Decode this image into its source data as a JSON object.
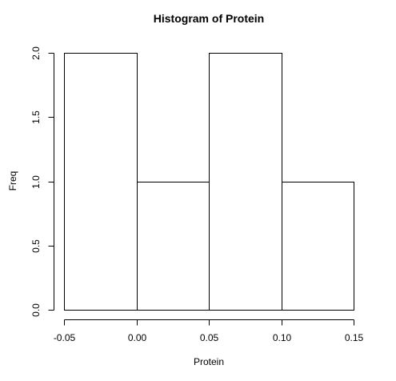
{
  "chart_data": {
    "type": "bar",
    "title": "Histogram of Protein",
    "xlabel": "Protein",
    "ylabel": "Freq",
    "bins": [
      {
        "start": -0.05,
        "end": 0.0,
        "count": 2
      },
      {
        "start": 0.0,
        "end": 0.05,
        "count": 1
      },
      {
        "start": 0.05,
        "end": 0.1,
        "count": 2
      },
      {
        "start": 0.1,
        "end": 0.15,
        "count": 1
      }
    ],
    "xlim": [
      -0.05,
      0.15
    ],
    "ylim": [
      0,
      2
    ],
    "x_ticks": [
      {
        "value": -0.05,
        "label": "-0.05"
      },
      {
        "value": 0.0,
        "label": "0.00"
      },
      {
        "value": 0.05,
        "label": "0.05"
      },
      {
        "value": 0.1,
        "label": "0.10"
      },
      {
        "value": 0.15,
        "label": "0.15"
      }
    ],
    "y_ticks": [
      {
        "value": 0.0,
        "label": "0.0"
      },
      {
        "value": 0.5,
        "label": "0.5"
      },
      {
        "value": 1.0,
        "label": "1.0"
      },
      {
        "value": 1.5,
        "label": "1.5"
      },
      {
        "value": 2.0,
        "label": "2.0"
      }
    ],
    "grid": false,
    "legend": "none",
    "bar_fill": "#ffffff",
    "bar_stroke": "#000000"
  }
}
